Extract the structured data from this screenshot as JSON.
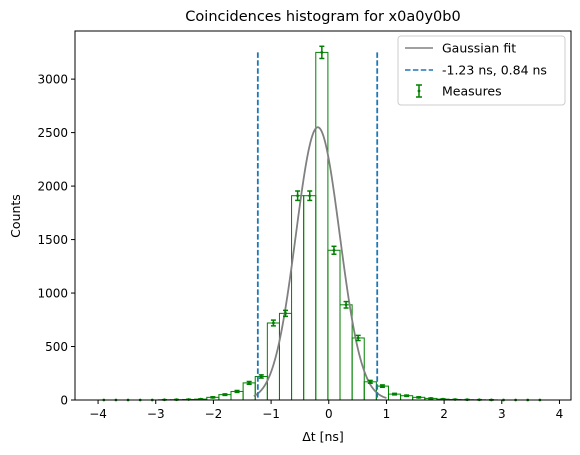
{
  "chart_data": {
    "type": "histogram",
    "title": "Coincidences histogram for x0a0y0b0",
    "xlabel": "Δt [ns]",
    "ylabel": "Counts",
    "xlim": [
      -4.4,
      4.2
    ],
    "ylim": [
      0,
      3450
    ],
    "xticks": [
      -4,
      -3,
      -2,
      -1,
      0,
      1,
      2,
      3,
      4
    ],
    "yticks": [
      0,
      500,
      1000,
      1500,
      2000,
      2500,
      3000
    ],
    "grid": false,
    "legend_position": "top-right",
    "bin_width": 0.21,
    "bins": {
      "centers": [
        -3.9,
        -3.69,
        -3.48,
        -3.27,
        -3.06,
        -2.85,
        -2.64,
        -2.43,
        -2.22,
        -2.01,
        -1.8,
        -1.59,
        -1.38,
        -1.17,
        -0.96,
        -0.75,
        -0.54,
        -0.33,
        -0.12,
        0.09,
        0.3,
        0.51,
        0.72,
        0.93,
        1.14,
        1.35,
        1.56,
        1.77,
        1.98,
        2.19,
        2.4,
        2.61,
        2.82,
        3.03,
        3.24,
        3.45,
        3.66
      ],
      "counts": [
        0,
        0,
        0,
        0,
        0,
        2,
        3,
        5,
        8,
        25,
        50,
        80,
        160,
        220,
        720,
        810,
        1910,
        1910,
        3250,
        1400,
        890,
        580,
        170,
        130,
        55,
        40,
        25,
        15,
        8,
        5,
        3,
        2,
        1,
        0,
        0,
        0,
        0
      ],
      "errors": [
        0,
        0,
        0,
        0,
        0,
        1,
        2,
        2,
        3,
        5,
        7,
        9,
        13,
        15,
        27,
        28,
        44,
        44,
        57,
        37,
        30,
        24,
        13,
        11,
        7,
        6,
        5,
        4,
        3,
        2,
        2,
        1,
        1,
        0,
        0,
        0,
        0
      ]
    },
    "gaussian_fit": {
      "amplitude": 2550,
      "mean": -0.19,
      "sigma": 0.38
    },
    "vertical_lines": [
      -1.23,
      0.84
    ],
    "vertical_line_top": 3250,
    "series": [
      {
        "name": "Gaussian fit",
        "color": "#808080",
        "kind": "line"
      },
      {
        "name": "-1.23 ns, 0.84 ns",
        "color": "#1f77b4",
        "kind": "dashed"
      },
      {
        "name": "Measures",
        "color": "#008000",
        "kind": "errorbar"
      }
    ]
  }
}
